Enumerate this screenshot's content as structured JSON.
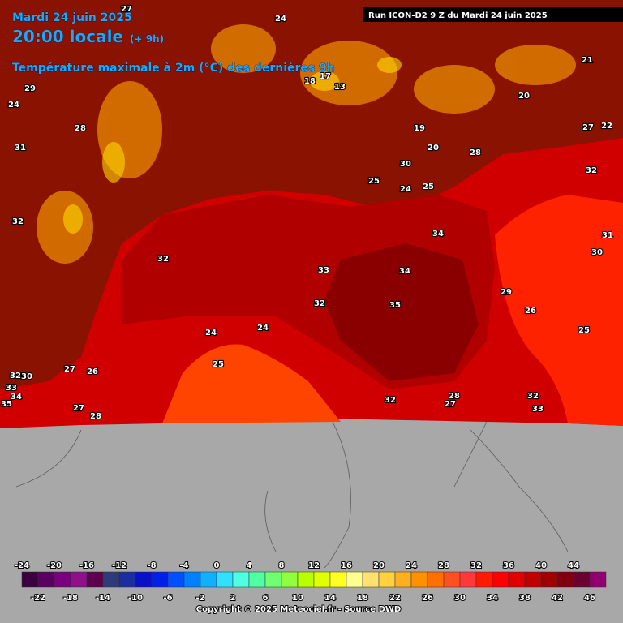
{
  "header": {
    "date": "Mardi 24 juin 2025",
    "time": "20:00 locale",
    "offset": "(+ 9h)",
    "subtitle": "Température maximale à 2m (°C) des dernières 9h",
    "run": "Run ICON-D2 9 Z du Mardi 24 juin 2025"
  },
  "map": {
    "labels": [
      32,
      33,
      34,
      34,
      35,
      32,
      24,
      24,
      25,
      26,
      25,
      29,
      32,
      31,
      30,
      28,
      31,
      29,
      24,
      27,
      24,
      28,
      27,
      32,
      33,
      32,
      28,
      27,
      35,
      34,
      33,
      26,
      27,
      30,
      32,
      25,
      30,
      28,
      20,
      24,
      25,
      19,
      18,
      17,
      13,
      21,
      22,
      27,
      20,
      32
    ]
  },
  "colorbar": {
    "colors": [
      "#3a0040",
      "#5a0060",
      "#7a0080",
      "#90108c",
      "#5e0050",
      "#2e3a7a",
      "#1a2ea0",
      "#0a10c8",
      "#0020e8",
      "#0050ff",
      "#0080ff",
      "#10b0ff",
      "#30e0ff",
      "#50ffe0",
      "#50ffa0",
      "#70ff70",
      "#90ff40",
      "#b8ff00",
      "#e0ff00",
      "#ffff20",
      "#ffff90",
      "#ffe070",
      "#ffd040",
      "#ffb020",
      "#ff9000",
      "#ff7000",
      "#ff5020",
      "#ff3838",
      "#ff1a00",
      "#ff0000",
      "#e00000",
      "#c00000",
      "#a00000",
      "#800010",
      "#6a0030",
      "#900070"
    ],
    "top_labels": [
      -24,
      -20,
      -16,
      -12,
      -8,
      -4,
      0,
      4,
      8,
      12,
      16,
      20,
      24,
      28,
      32,
      36,
      40,
      44
    ],
    "bottom_labels": [
      -22,
      -18,
      -14,
      -10,
      -6,
      -2,
      2,
      6,
      10,
      14,
      18,
      22,
      26,
      30,
      34,
      38,
      42,
      46
    ]
  },
  "footer": {
    "copyright": "Copyright © 2025 Meteociel.fr - Source DWD"
  }
}
